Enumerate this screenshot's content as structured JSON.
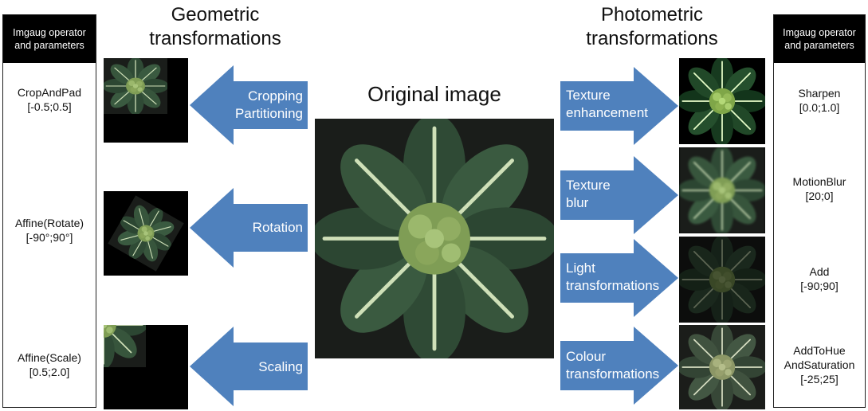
{
  "left_panel": {
    "header_line1": "Imgaug operator",
    "header_line2": "and  parameters",
    "params": [
      {
        "name": "CropAndPad",
        "range": "[-0.5;0.5]"
      },
      {
        "name": "Affine(Rotate)",
        "range": "[-90°;90°]"
      },
      {
        "name": "Affine(Scale)",
        "range": "[0.5;2.0]"
      }
    ]
  },
  "right_panel": {
    "header_line1": "Imgaug operator",
    "header_line2": "and  parameters",
    "params": [
      {
        "name": "Sharpen",
        "range": "[0.0;1.0]"
      },
      {
        "name": "MotionBlur",
        "range": "[20;0]"
      },
      {
        "name": "Add",
        "range": "[-90;90]"
      },
      {
        "name1": "AddToHue",
        "name2": "AndSaturation",
        "range": "[-25;25]"
      }
    ]
  },
  "headings": {
    "geometric_line1": "Geometric",
    "geometric_line2": "transformations",
    "photometric_line1": "Photometric",
    "photometric_line2": "transformations",
    "original": "Original image"
  },
  "left_arrows": {
    "crop_line1": "Cropping",
    "crop_line2": "Partitioning",
    "rotation": "Rotation",
    "scaling": "Scaling"
  },
  "right_arrows": {
    "texture_enh_line1": "Texture",
    "texture_enh_line2": "enhancement",
    "texture_blur_line1": "Texture",
    "texture_blur_line2": "blur",
    "light_line1": "Light",
    "light_line2": "transformations",
    "colour_line1": "Colour",
    "colour_line2": "transformations"
  },
  "colors": {
    "arrow": "#4f81bd",
    "panel_header": "#000000",
    "leaf": "#2e4a34",
    "vein": "#cfe0b8",
    "floret": "#8fae5f"
  }
}
